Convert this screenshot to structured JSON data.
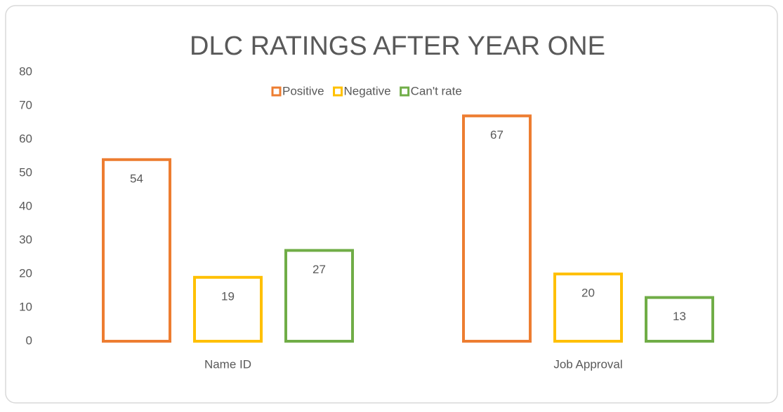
{
  "chart_data": {
    "type": "bar",
    "title": "DLC RATINGS AFTER YEAR ONE",
    "categories": [
      "Name ID",
      "Job Approval"
    ],
    "series": [
      {
        "name": "Positive",
        "color": "#ed7d31",
        "values": [
          54,
          67
        ]
      },
      {
        "name": "Negative",
        "color": "#ffc000",
        "values": [
          19,
          20
        ]
      },
      {
        "name": "Can't rate",
        "color": "#70ad47",
        "values": [
          27,
          13
        ]
      }
    ],
    "ylim": [
      0,
      80
    ],
    "yticks": [
      0,
      10,
      20,
      30,
      40,
      50,
      60,
      70,
      80
    ],
    "legend": "top",
    "grid": false
  }
}
